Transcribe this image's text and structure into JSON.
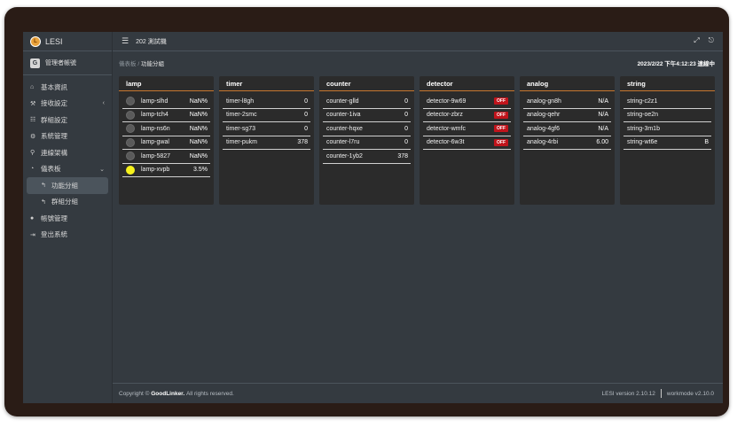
{
  "brand": {
    "name": "LESI",
    "logo_letter": "L"
  },
  "user": {
    "label": "管理者帳號",
    "icon_letter": "G"
  },
  "sidebar": {
    "items": [
      {
        "icon": "home-icon",
        "glyph": "⌂",
        "label": "基本資訊"
      },
      {
        "icon": "wrench-icon",
        "glyph": "⚒",
        "label": "接收設定",
        "chevron": "‹"
      },
      {
        "icon": "sitemap-icon",
        "glyph": "☷",
        "label": "群組設定"
      },
      {
        "icon": "gear-icon",
        "glyph": "⚙",
        "label": "系統管理"
      },
      {
        "icon": "link-icon",
        "glyph": "⚲",
        "label": "連線架構"
      },
      {
        "icon": "dashboard-icon",
        "glyph": "◔",
        "label": "儀表板",
        "chevron": "⌄"
      },
      {
        "icon": "arrow-icon",
        "glyph": "↰",
        "label": "功能分組"
      },
      {
        "icon": "arrow-icon",
        "glyph": "↰",
        "label": "群組分組"
      },
      {
        "icon": "user-icon",
        "glyph": "●",
        "label": "帳號管理"
      },
      {
        "icon": "logout-icon",
        "glyph": "⇥",
        "label": "登出系統"
      }
    ]
  },
  "topbar": {
    "menu_glyph": "☰",
    "title": "202 測試機",
    "expand_glyph": "⤢",
    "exit_glyph": "⎋"
  },
  "breadcrumb": {
    "parent": "儀表板",
    "sep": "/",
    "current": "功能分組"
  },
  "clock": "2023/2/22 下午4:12:23 連線中",
  "panels": {
    "lamp": {
      "title": "lamp",
      "rows": [
        {
          "name": "lamp-slhd",
          "value": "NaN%",
          "on": false
        },
        {
          "name": "lamp-tch4",
          "value": "NaN%",
          "on": false
        },
        {
          "name": "lamp-ns6n",
          "value": "NaN%",
          "on": false
        },
        {
          "name": "lamp-gwal",
          "value": "NaN%",
          "on": false
        },
        {
          "name": "lamp-5827",
          "value": "NaN%",
          "on": false
        },
        {
          "name": "lamp-xvpb",
          "value": "3.5%",
          "on": true
        }
      ]
    },
    "timer": {
      "title": "timer",
      "rows": [
        {
          "name": "timer-l8gh",
          "value": "0"
        },
        {
          "name": "timer-2smc",
          "value": "0"
        },
        {
          "name": "timer-sg73",
          "value": "0"
        },
        {
          "name": "timer-pukm",
          "value": "378"
        }
      ]
    },
    "counter": {
      "title": "counter",
      "rows": [
        {
          "name": "counter-glld",
          "value": "0"
        },
        {
          "name": "counter-1iva",
          "value": "0"
        },
        {
          "name": "counter-hqxe",
          "value": "0"
        },
        {
          "name": "counter-l7ru",
          "value": "0"
        },
        {
          "name": "counter-1yb2",
          "value": "378"
        }
      ]
    },
    "detector": {
      "title": "detector",
      "rows": [
        {
          "name": "detector-9w69",
          "value": "OFF"
        },
        {
          "name": "detector-zbrz",
          "value": "OFF"
        },
        {
          "name": "detector-wmfc",
          "value": "OFF"
        },
        {
          "name": "detector-6w3t",
          "value": "OFF"
        }
      ]
    },
    "analog": {
      "title": "analog",
      "rows": [
        {
          "name": "analog-gn8h",
          "value": "N/A"
        },
        {
          "name": "analog-qehr",
          "value": "N/A"
        },
        {
          "name": "analog-4gf6",
          "value": "N/A"
        },
        {
          "name": "analog-4rbi",
          "value": "6.00"
        }
      ]
    },
    "string": {
      "title": "string",
      "rows": [
        {
          "name": "string-c2z1",
          "value": ""
        },
        {
          "name": "string-oe2n",
          "value": ""
        },
        {
          "name": "string-3m1b",
          "value": ""
        },
        {
          "name": "string-wt6e",
          "value": "B"
        }
      ]
    }
  },
  "footer": {
    "copyright_prefix": "Copyright ©",
    "company": "GoodLinker.",
    "rights": "All rights reserved.",
    "version": "LESI version 2.10.12",
    "workmode": "workmode v2.10.0"
  },
  "colors": {
    "accent": "#c8782f",
    "lamp_on": "#f7f21c",
    "off_badge": "#c0141c"
  }
}
